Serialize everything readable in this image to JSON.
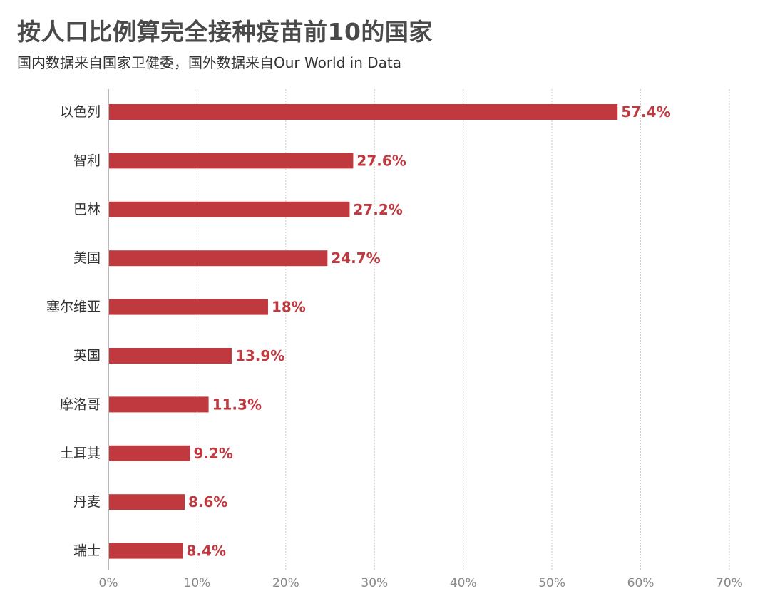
{
  "chart_data": {
    "type": "bar",
    "orientation": "horizontal",
    "title": "按人口比例算完全接种疫苗前10的国家",
    "subtitle": "国内数据来自国家卫健委，国外数据来自Our World in Data",
    "categories": [
      "以色列",
      "智利",
      "巴林",
      "美国",
      "塞尔维亚",
      "英国",
      "摩洛哥",
      "土耳其",
      "丹麦",
      "瑞士"
    ],
    "values": [
      57.4,
      27.6,
      27.2,
      24.7,
      18,
      13.9,
      11.3,
      9.2,
      8.6,
      8.4
    ],
    "value_labels": [
      "57.4%",
      "27.6%",
      "27.2%",
      "24.7%",
      "18%",
      "13.9%",
      "11.3%",
      "9.2%",
      "8.6%",
      "8.4%"
    ],
    "xlim": [
      0,
      70
    ],
    "x_ticks": [
      0,
      10,
      20,
      30,
      40,
      50,
      60,
      70
    ],
    "x_tick_labels": [
      "0%",
      "10%",
      "20%",
      "30%",
      "40%",
      "50%",
      "60%",
      "70%"
    ],
    "grid": true,
    "legend": "none",
    "bar_color": "#c0393f",
    "value_label_color": "#c0393f",
    "grid_color": "#cccccc"
  }
}
